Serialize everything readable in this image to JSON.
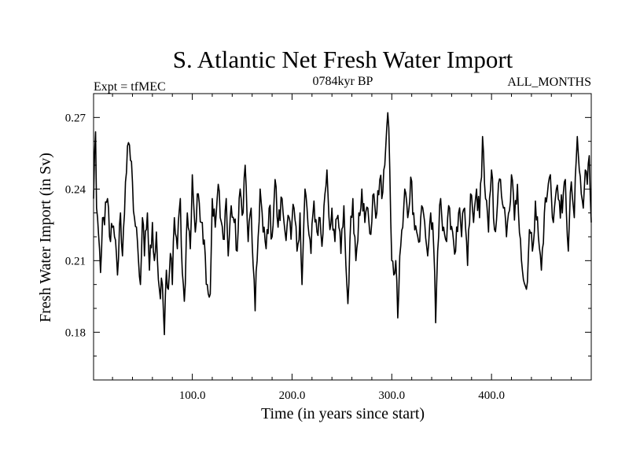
{
  "chart_data": {
    "type": "line",
    "title": "S. Atlantic Net Fresh Water Import",
    "subtitle_left": "Expt = tfMEC",
    "subtitle_center": "0784kyr BP",
    "subtitle_right": "ALL_MONTHS",
    "xlabel": "Time (in years since start)",
    "ylabel": "Fresh Water Import (in Sv)",
    "xlim": [
      1,
      500
    ],
    "ylim": [
      0.16,
      0.28
    ],
    "x_ticks": [
      100,
      200,
      300,
      400
    ],
    "x_tick_labels": [
      "100.0",
      "200.0",
      "300.0",
      "400.0"
    ],
    "y_ticks": [
      0.18,
      0.21,
      0.24,
      0.27
    ],
    "y_tick_labels": [
      "0.18",
      "0.21",
      "0.24",
      "0.27"
    ],
    "x_start": 1,
    "x_step": 1,
    "series": [
      {
        "name": "Net Fresh Water Import",
        "color": "#000000",
        "anchors": [
          [
            1,
            0.236
          ],
          [
            2,
            0.255
          ],
          [
            3,
            0.264
          ],
          [
            4,
            0.232
          ],
          [
            5,
            0.228
          ],
          [
            6,
            0.221
          ],
          [
            8,
            0.205
          ],
          [
            10,
            0.228
          ],
          [
            12,
            0.225
          ],
          [
            15,
            0.236
          ],
          [
            18,
            0.218
          ],
          [
            20,
            0.224
          ],
          [
            22,
            0.22
          ],
          [
            25,
            0.204
          ],
          [
            28,
            0.23
          ],
          [
            30,
            0.212
          ],
          [
            33,
            0.243
          ],
          [
            35,
            0.258
          ],
          [
            38,
            0.252
          ],
          [
            40,
            0.243
          ],
          [
            42,
            0.228
          ],
          [
            45,
            0.218
          ],
          [
            48,
            0.2
          ],
          [
            50,
            0.228
          ],
          [
            52,
            0.212
          ],
          [
            55,
            0.23
          ],
          [
            57,
            0.206
          ],
          [
            60,
            0.226
          ],
          [
            62,
            0.21
          ],
          [
            64,
            0.222
          ],
          [
            66,
            0.202
          ],
          [
            68,
            0.194
          ],
          [
            70,
            0.2
          ],
          [
            72,
            0.179
          ],
          [
            74,
            0.206
          ],
          [
            76,
            0.198
          ],
          [
            78,
            0.213
          ],
          [
            80,
            0.2
          ],
          [
            82,
            0.228
          ],
          [
            85,
            0.215
          ],
          [
            88,
            0.236
          ],
          [
            90,
            0.205
          ],
          [
            92,
            0.193
          ],
          [
            95,
            0.23
          ],
          [
            98,
            0.215
          ],
          [
            100,
            0.246
          ],
          [
            103,
            0.222
          ],
          [
            106,
            0.238
          ],
          [
            110,
            0.226
          ],
          [
            113,
            0.212
          ],
          [
            115,
            0.2
          ],
          [
            118,
            0.196
          ],
          [
            120,
            0.236
          ],
          [
            123,
            0.224
          ],
          [
            126,
            0.242
          ],
          [
            128,
            0.228
          ],
          [
            131,
            0.219
          ],
          [
            134,
            0.236
          ],
          [
            136,
            0.212
          ],
          [
            139,
            0.233
          ],
          [
            142,
            0.226
          ],
          [
            145,
            0.214
          ],
          [
            148,
            0.24
          ],
          [
            150,
            0.229
          ],
          [
            153,
            0.25
          ],
          [
            156,
            0.218
          ],
          [
            159,
            0.232
          ],
          [
            161,
            0.208
          ],
          [
            163,
            0.189
          ],
          [
            165,
            0.21
          ],
          [
            168,
            0.24
          ],
          [
            171,
            0.222
          ],
          [
            174,
            0.215
          ],
          [
            177,
            0.232
          ],
          [
            180,
            0.22
          ],
          [
            183,
            0.244
          ],
          [
            186,
            0.224
          ],
          [
            190,
            0.236
          ],
          [
            193,
            0.222
          ],
          [
            196,
            0.229
          ],
          [
            199,
            0.219
          ],
          [
            202,
            0.232
          ],
          [
            205,
            0.214
          ],
          [
            208,
            0.23
          ],
          [
            210,
            0.2
          ],
          [
            213,
            0.24
          ],
          [
            216,
            0.225
          ],
          [
            219,
            0.213
          ],
          [
            222,
            0.235
          ],
          [
            225,
            0.222
          ],
          [
            228,
            0.228
          ],
          [
            230,
            0.216
          ],
          [
            233,
            0.238
          ],
          [
            235,
            0.248
          ],
          [
            238,
            0.223
          ],
          [
            240,
            0.232
          ],
          [
            243,
            0.218
          ],
          [
            246,
            0.229
          ],
          [
            249,
            0.213
          ],
          [
            252,
            0.233
          ],
          [
            254,
            0.208
          ],
          [
            256,
            0.192
          ],
          [
            258,
            0.218
          ],
          [
            261,
            0.236
          ],
          [
            264,
            0.21
          ],
          [
            267,
            0.23
          ],
          [
            270,
            0.24
          ],
          [
            273,
            0.226
          ],
          [
            276,
            0.232
          ],
          [
            279,
            0.221
          ],
          [
            282,
            0.238
          ],
          [
            285,
            0.23
          ],
          [
            288,
            0.244
          ],
          [
            290,
            0.236
          ],
          [
            292,
            0.248
          ],
          [
            294,
            0.258
          ],
          [
            296,
            0.272
          ],
          [
            298,
            0.248
          ],
          [
            300,
            0.21
          ],
          [
            302,
            0.204
          ],
          [
            304,
            0.21
          ],
          [
            306,
            0.186
          ],
          [
            308,
            0.212
          ],
          [
            311,
            0.224
          ],
          [
            313,
            0.24
          ],
          [
            316,
            0.228
          ],
          [
            319,
            0.245
          ],
          [
            322,
            0.23
          ],
          [
            325,
            0.222
          ],
          [
            328,
            0.218
          ],
          [
            330,
            0.233
          ],
          [
            333,
            0.226
          ],
          [
            336,
            0.212
          ],
          [
            339,
            0.23
          ],
          [
            342,
            0.216
          ],
          [
            344,
            0.184
          ],
          [
            346,
            0.214
          ],
          [
            349,
            0.236
          ],
          [
            352,
            0.224
          ],
          [
            355,
            0.218
          ],
          [
            358,
            0.232
          ],
          [
            361,
            0.222
          ],
          [
            364,
            0.214
          ],
          [
            367,
            0.23
          ],
          [
            370,
            0.22
          ],
          [
            373,
            0.232
          ],
          [
            376,
            0.208
          ],
          [
            379,
            0.238
          ],
          [
            382,
            0.226
          ],
          [
            385,
            0.24
          ],
          [
            388,
            0.228
          ],
          [
            391,
            0.262
          ],
          [
            394,
            0.236
          ],
          [
            397,
            0.222
          ],
          [
            400,
            0.248
          ],
          [
            403,
            0.223
          ],
          [
            406,
            0.234
          ],
          [
            409,
            0.244
          ],
          [
            412,
            0.232
          ],
          [
            415,
            0.22
          ],
          [
            418,
            0.231
          ],
          [
            420,
            0.246
          ],
          [
            423,
            0.227
          ],
          [
            426,
            0.242
          ],
          [
            429,
            0.219
          ],
          [
            432,
            0.202
          ],
          [
            435,
            0.198
          ],
          [
            438,
            0.223
          ],
          [
            441,
            0.214
          ],
          [
            444,
            0.235
          ],
          [
            447,
            0.22
          ],
          [
            450,
            0.206
          ],
          [
            453,
            0.23
          ],
          [
            456,
            0.238
          ],
          [
            459,
            0.246
          ],
          [
            462,
            0.226
          ],
          [
            465,
            0.24
          ],
          [
            468,
            0.235
          ],
          [
            471,
            0.23
          ],
          [
            474,
            0.244
          ],
          [
            477,
            0.214
          ],
          [
            480,
            0.243
          ],
          [
            483,
            0.228
          ],
          [
            486,
            0.262
          ],
          [
            488,
            0.248
          ],
          [
            490,
            0.238
          ],
          [
            492,
            0.232
          ],
          [
            494,
            0.248
          ],
          [
            496,
            0.242
          ],
          [
            498,
            0.254
          ],
          [
            500,
            0.226
          ]
        ]
      }
    ]
  }
}
